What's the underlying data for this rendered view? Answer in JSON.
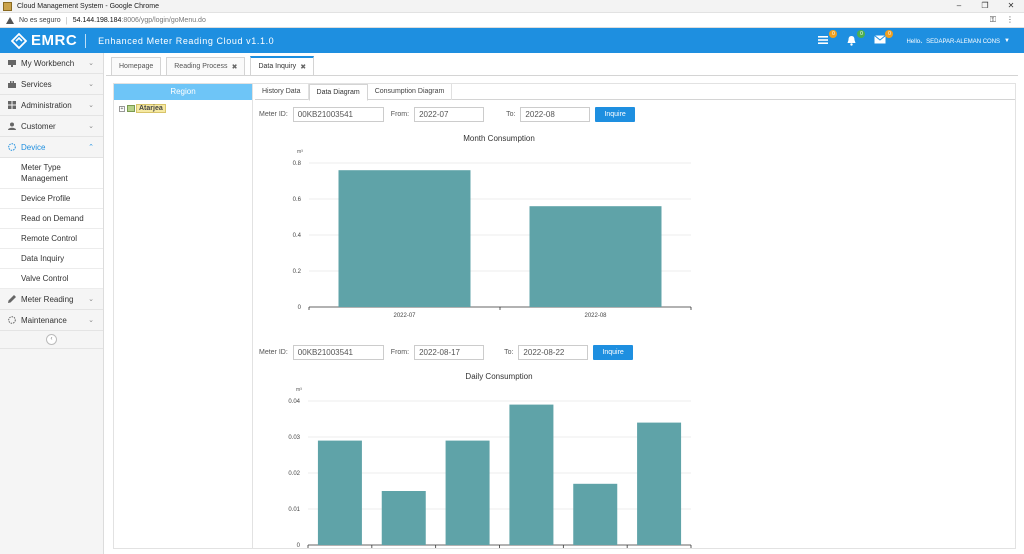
{
  "browser": {
    "window_title": "Cloud Management System - Google Chrome",
    "security_label": "No es seguro",
    "url_host": "54.144.198.184",
    "url_path": ":8006/ygp/login/goMenu.do",
    "controls": [
      "–",
      "❐",
      "✕"
    ]
  },
  "header": {
    "logo_text": "EMRC",
    "subtitle": "Enhanced Meter Reading Cloud v1.1.0",
    "badges": [
      "0",
      "0",
      "0"
    ],
    "user_greeting": "Hello、SEDAPAR-ALEMAN CONS",
    "icons": [
      "list-icon",
      "bell-icon",
      "mail-icon"
    ],
    "accent_color": "#1e8fe0"
  },
  "sidebar": {
    "menu": [
      {
        "label": "My Workbench",
        "icon": "monitor-icon"
      },
      {
        "label": "Services",
        "icon": "briefcase-icon"
      },
      {
        "label": "Administration",
        "icon": "grid-icon"
      },
      {
        "label": "Customer",
        "icon": "user-icon"
      },
      {
        "label": "Device",
        "icon": "device-icon",
        "active": true
      }
    ],
    "device_submenu": [
      "Meter Type",
      "Management",
      "Device Profile",
      "Read on Demand",
      "Remote Control",
      "Data Inquiry",
      "Valve Control"
    ],
    "menu_after": [
      {
        "label": "Meter Reading",
        "icon": "pencil-icon"
      },
      {
        "label": "Maintenance",
        "icon": "spinner-icon"
      }
    ]
  },
  "tabs": [
    {
      "label": "Homepage",
      "closable": false
    },
    {
      "label": "Reading Process",
      "closable": true
    },
    {
      "label": "Data Inquiry",
      "closable": true,
      "active": true
    }
  ],
  "region": {
    "header": "Region",
    "tree_root": "Atarjea"
  },
  "inner_tabs": [
    "History Data",
    "Data Diagram",
    "Consumption Diagram"
  ],
  "monthly_form": {
    "meter_label": "Meter ID:",
    "meter_value": "00KB21003541",
    "from_label": "From:",
    "from_value": "2022-07",
    "to_label": "To:",
    "to_value": "2022-08",
    "button": "Inquire"
  },
  "daily_form": {
    "meter_label": "Meter ID:",
    "meter_value": "00KB21003541",
    "from_label": "From:",
    "from_value": "2022-08-17",
    "to_label": "To:",
    "to_value": "2022-08-22",
    "button": "Inquire"
  },
  "chart_data": [
    {
      "type": "bar",
      "title": "Month Consumption",
      "ylabel": "m³",
      "categories": [
        "2022-07",
        "2022-08"
      ],
      "values": [
        0.76,
        0.56
      ],
      "ylim": [
        0,
        0.8
      ],
      "yticks": [
        "0",
        "0.2",
        "0.4",
        "0.6",
        "0.8"
      ],
      "grid": true,
      "bar_color": "#5fa3a8"
    },
    {
      "type": "bar",
      "title": "Daily Consumption",
      "ylabel": "m³",
      "categories": [
        "",
        "",
        "",
        "",
        "",
        ""
      ],
      "values": [
        0.029,
        0.015,
        0.029,
        0.039,
        0.017,
        0.034
      ],
      "ylim": [
        0,
        0.04
      ],
      "yticks": [
        "0",
        "0.01",
        "0.02",
        "0.03",
        "0.04"
      ],
      "grid": true,
      "bar_color": "#5fa3a8"
    }
  ]
}
